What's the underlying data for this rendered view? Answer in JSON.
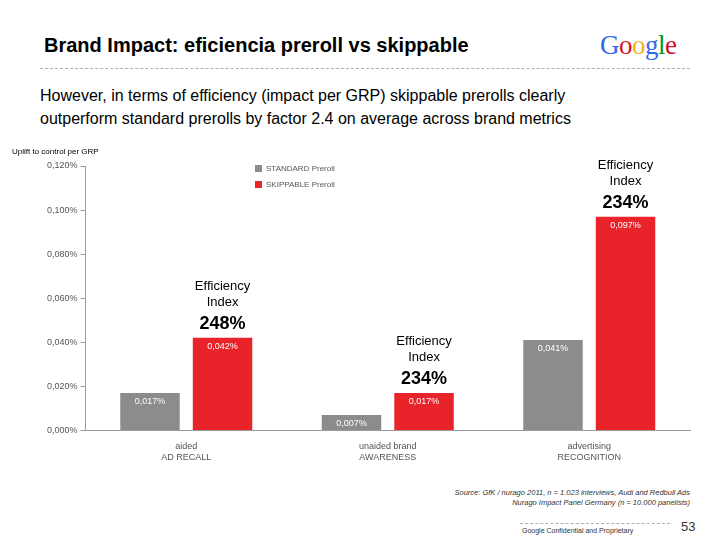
{
  "title": "Brand Impact: eficiencia preroll vs skippable",
  "logo": "Google",
  "subtitle": [
    "However, in terms of efficiency (impact per GRP) skippable prerolls clearly",
    "outperform standard prerolls by factor 2.4 on average across brand metrics"
  ],
  "source": [
    "Source: GfK / nurago 2011, n = 1.023 interviews, Audi and Redbull Ads",
    "Nurago Impact Panel Germany (n = 10.000 panelists)"
  ],
  "footer": "Google Confidential and Proprietary",
  "page_number": 53,
  "chart_data": {
    "type": "bar",
    "y_label": "Uplift to control per GRP",
    "categories": [
      [
        "aided",
        "AD RECALL"
      ],
      [
        "unaided brand",
        "AWARENESS"
      ],
      [
        "advertising",
        "RECOGNITION"
      ]
    ],
    "series": [
      {
        "name": "STANDARD Preroll",
        "color": "#8c8c8c",
        "values": [
          0.017,
          0.007,
          0.041
        ],
        "value_labels": [
          "0,017%",
          "0,007%",
          "0,041%"
        ]
      },
      {
        "name": "SKIPPABLE Preroll",
        "color": "#e8242a",
        "values": [
          0.042,
          0.017,
          0.097
        ],
        "value_labels": [
          "0,042%",
          "0,017%",
          "0,097%"
        ]
      }
    ],
    "efficiency_index": {
      "label": [
        "Efficiency",
        "Index"
      ],
      "values": [
        248,
        234,
        234
      ],
      "value_labels": [
        "248%",
        "234%",
        "234%"
      ]
    },
    "ylim": [
      0,
      0.12
    ],
    "yticks": [
      {
        "value": 0,
        "label": "0,000%"
      },
      {
        "value": 0.02,
        "label": "0,020%"
      },
      {
        "value": 0.04,
        "label": "0,040%"
      },
      {
        "value": 0.06,
        "label": "0,060%"
      },
      {
        "value": 0.08,
        "label": "0,080%"
      },
      {
        "value": 0.1,
        "label": "0,100%"
      },
      {
        "value": 0.12,
        "label": "0,120%"
      }
    ],
    "grid": false,
    "legend": "upper left",
    "data_labels": true
  }
}
